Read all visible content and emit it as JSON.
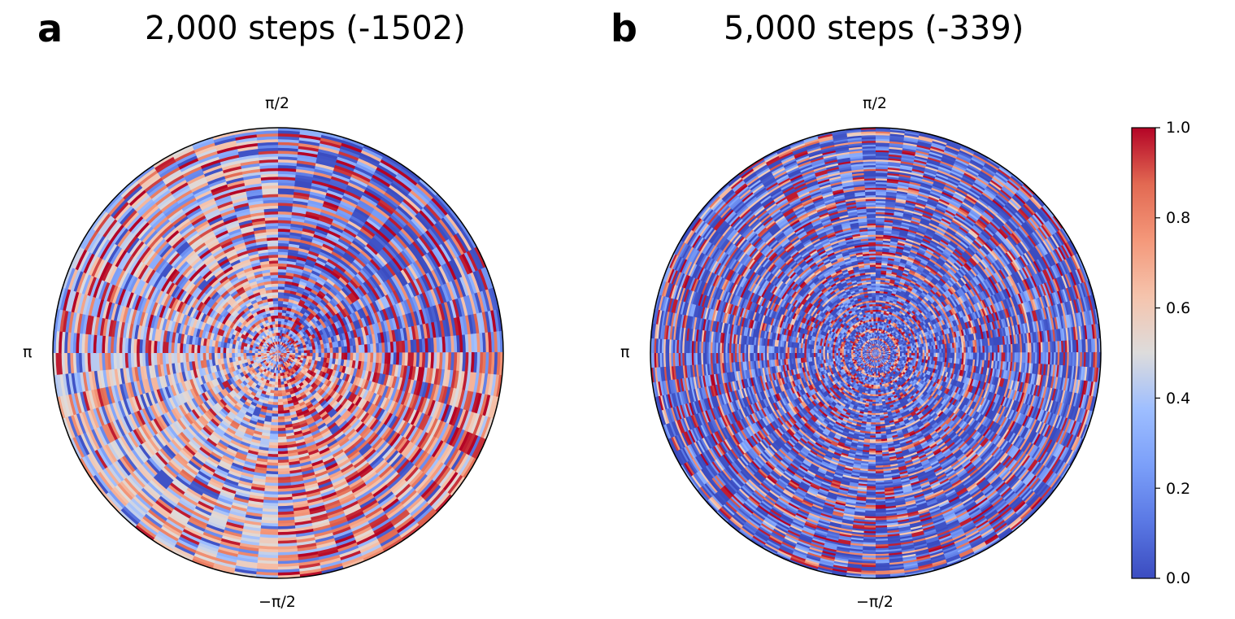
{
  "chart_data": [
    {
      "type": "heatmap",
      "projection": "polar",
      "panel_label": "a",
      "title": "2,000 steps (-1502)",
      "angle_tick_labels": {
        "top": "π/2",
        "left": "π",
        "bottom": "−π/2"
      },
      "colormap": "coolwarm",
      "value_range": [
        0,
        1
      ],
      "pattern": {
        "description_values": "concentric rings with angular sectors",
        "ring_count_approx": 26,
        "sector_count_approx": 16,
        "dominant_values": {
          "upper_right": 0.05,
          "lower_right": 0.9,
          "left": 0.45,
          "lower_left": 0.7
        }
      }
    },
    {
      "type": "heatmap",
      "projection": "polar",
      "panel_label": "b",
      "title": "5,000 steps (-339)",
      "angle_tick_labels": {
        "top": "π/2",
        "left": "π",
        "bottom": "−π/2"
      },
      "colormap": "coolwarm",
      "value_range": [
        0,
        1
      ],
      "pattern": {
        "ring_count_approx": 40,
        "sector_count_approx": 24,
        "dominant_values": {
          "overall": 0.1
        }
      }
    }
  ],
  "colorbar": {
    "ticks": [
      "1.0",
      "0.8",
      "0.6",
      "0.4",
      "0.2",
      "0.0"
    ],
    "range": [
      0,
      1
    ]
  },
  "colors": {
    "cold": "#3b4cc0",
    "mid": "#dddddd",
    "hot": "#b40426",
    "outline": "#000000"
  }
}
